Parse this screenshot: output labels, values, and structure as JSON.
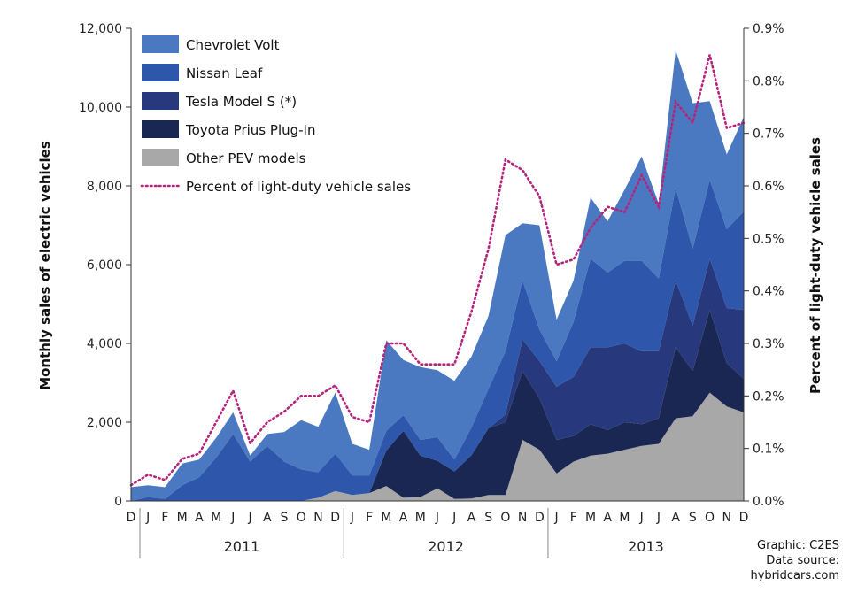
{
  "chart_data": {
    "type": "area",
    "ylabel": "Monthly  sales of electric vehicles",
    "y2label": "Percent of light-duty  vehicle sales",
    "ylim": [
      0,
      12000
    ],
    "y2lim": [
      0,
      0.9
    ],
    "yticks": [
      "0",
      "2,000",
      "4,000",
      "6,000",
      "8,000",
      "10,000",
      "12,000"
    ],
    "y2ticks": [
      "0.0%",
      "0.1%",
      "0.2%",
      "0.3%",
      "0.4%",
      "0.5%",
      "0.6%",
      "0.7%",
      "0.8%",
      "0.9%"
    ],
    "months": [
      "D",
      "J",
      "F",
      "M",
      "A",
      "M",
      "J",
      "J",
      "A",
      "S",
      "O",
      "N",
      "D",
      "J",
      "F",
      "M",
      "A",
      "M",
      "J",
      "J",
      "A",
      "S",
      "O",
      "N",
      "D",
      "J",
      "F",
      "M",
      "A",
      "M",
      "J",
      "J",
      "A",
      "S",
      "O",
      "N",
      "D"
    ],
    "years": [
      "2011",
      "2012",
      "2013"
    ],
    "legend_position": "top-left",
    "series": [
      {
        "name": "Other PEV models",
        "color": "#a8a8a8",
        "values": [
          0,
          0,
          0,
          0,
          0,
          0,
          0,
          0,
          0,
          0,
          0,
          80,
          250,
          150,
          200,
          380,
          80,
          100,
          320,
          50,
          60,
          150,
          150,
          1550,
          1300,
          700,
          1000,
          1150,
          1200,
          1300,
          1400,
          1450,
          2100,
          2150,
          2750,
          2400,
          2250
        ]
      },
      {
        "name": "Toyota Prius Plug-In",
        "color": "#1a2752",
        "values": [
          0,
          0,
          0,
          0,
          0,
          0,
          0,
          0,
          0,
          0,
          0,
          0,
          0,
          0,
          0,
          900,
          1700,
          1050,
          700,
          700,
          1100,
          1700,
          1850,
          1750,
          1300,
          850,
          650,
          800,
          600,
          700,
          550,
          650,
          1800,
          1150,
          2100,
          1100,
          850
        ]
      },
      {
        "name": "Tesla Model S (*)",
        "color": "#27397c",
        "values": [
          0,
          0,
          0,
          0,
          0,
          0,
          0,
          0,
          0,
          0,
          0,
          0,
          0,
          0,
          0,
          0,
          0,
          0,
          0,
          0,
          0,
          0,
          200,
          800,
          950,
          1350,
          1500,
          1950,
          2100,
          2000,
          1850,
          1700,
          1700,
          1150,
          1300,
          1400,
          1750
        ]
      },
      {
        "name": "Nissan Leaf",
        "color": "#2e57ab",
        "values": [
          0,
          100,
          50,
          400,
          600,
          1100,
          1700,
          1000,
          1400,
          1000,
          800,
          650,
          950,
          500,
          450,
          500,
          400,
          400,
          600,
          300,
          700,
          1000,
          1600,
          1500,
          800,
          650,
          1400,
          2250,
          1900,
          2100,
          2300,
          1850,
          2350,
          1950,
          2000,
          2000,
          2500
        ]
      },
      {
        "name": "Chevrolet Volt",
        "color": "#4a79c2",
        "values": [
          350,
          300,
          300,
          550,
          450,
          500,
          550,
          150,
          300,
          750,
          1250,
          1150,
          1550,
          800,
          650,
          2300,
          1400,
          1850,
          1700,
          2000,
          1800,
          1850,
          2950,
          1450,
          2650,
          1050,
          1050,
          1550,
          1300,
          1800,
          2650,
          1900,
          3500,
          3700,
          2000,
          1900,
          2400
        ]
      }
    ],
    "percent_series": {
      "name": "Percent of light-duty vehicle sales",
      "color": "#b5237a",
      "values": [
        0.03,
        0.05,
        0.04,
        0.08,
        0.09,
        0.15,
        0.21,
        0.11,
        0.15,
        0.17,
        0.2,
        0.2,
        0.22,
        0.16,
        0.15,
        0.3,
        0.3,
        0.26,
        0.26,
        0.26,
        0.36,
        0.48,
        0.65,
        0.63,
        0.58,
        0.45,
        0.46,
        0.52,
        0.56,
        0.55,
        0.62,
        0.56,
        0.76,
        0.72,
        0.85,
        0.71,
        0.72
      ]
    },
    "legend": [
      {
        "label": "Chevrolet Volt",
        "color": "#4a79c2",
        "kind": "area"
      },
      {
        "label": "Nissan Leaf",
        "color": "#2e57ab",
        "kind": "area"
      },
      {
        "label": "Tesla Model S (*)",
        "color": "#27397c",
        "kind": "area"
      },
      {
        "label": "Toyota Prius Plug-In",
        "color": "#1a2752",
        "kind": "area"
      },
      {
        "label": "Other PEV models",
        "color": "#a8a8a8",
        "kind": "area"
      },
      {
        "label": "Percent of light-duty vehicle sales",
        "color": "#b5237a",
        "kind": "line"
      }
    ]
  },
  "credits": {
    "graphic": "Graphic: C2ES",
    "source_label": "Data source:",
    "source": "hybridcars.com"
  }
}
